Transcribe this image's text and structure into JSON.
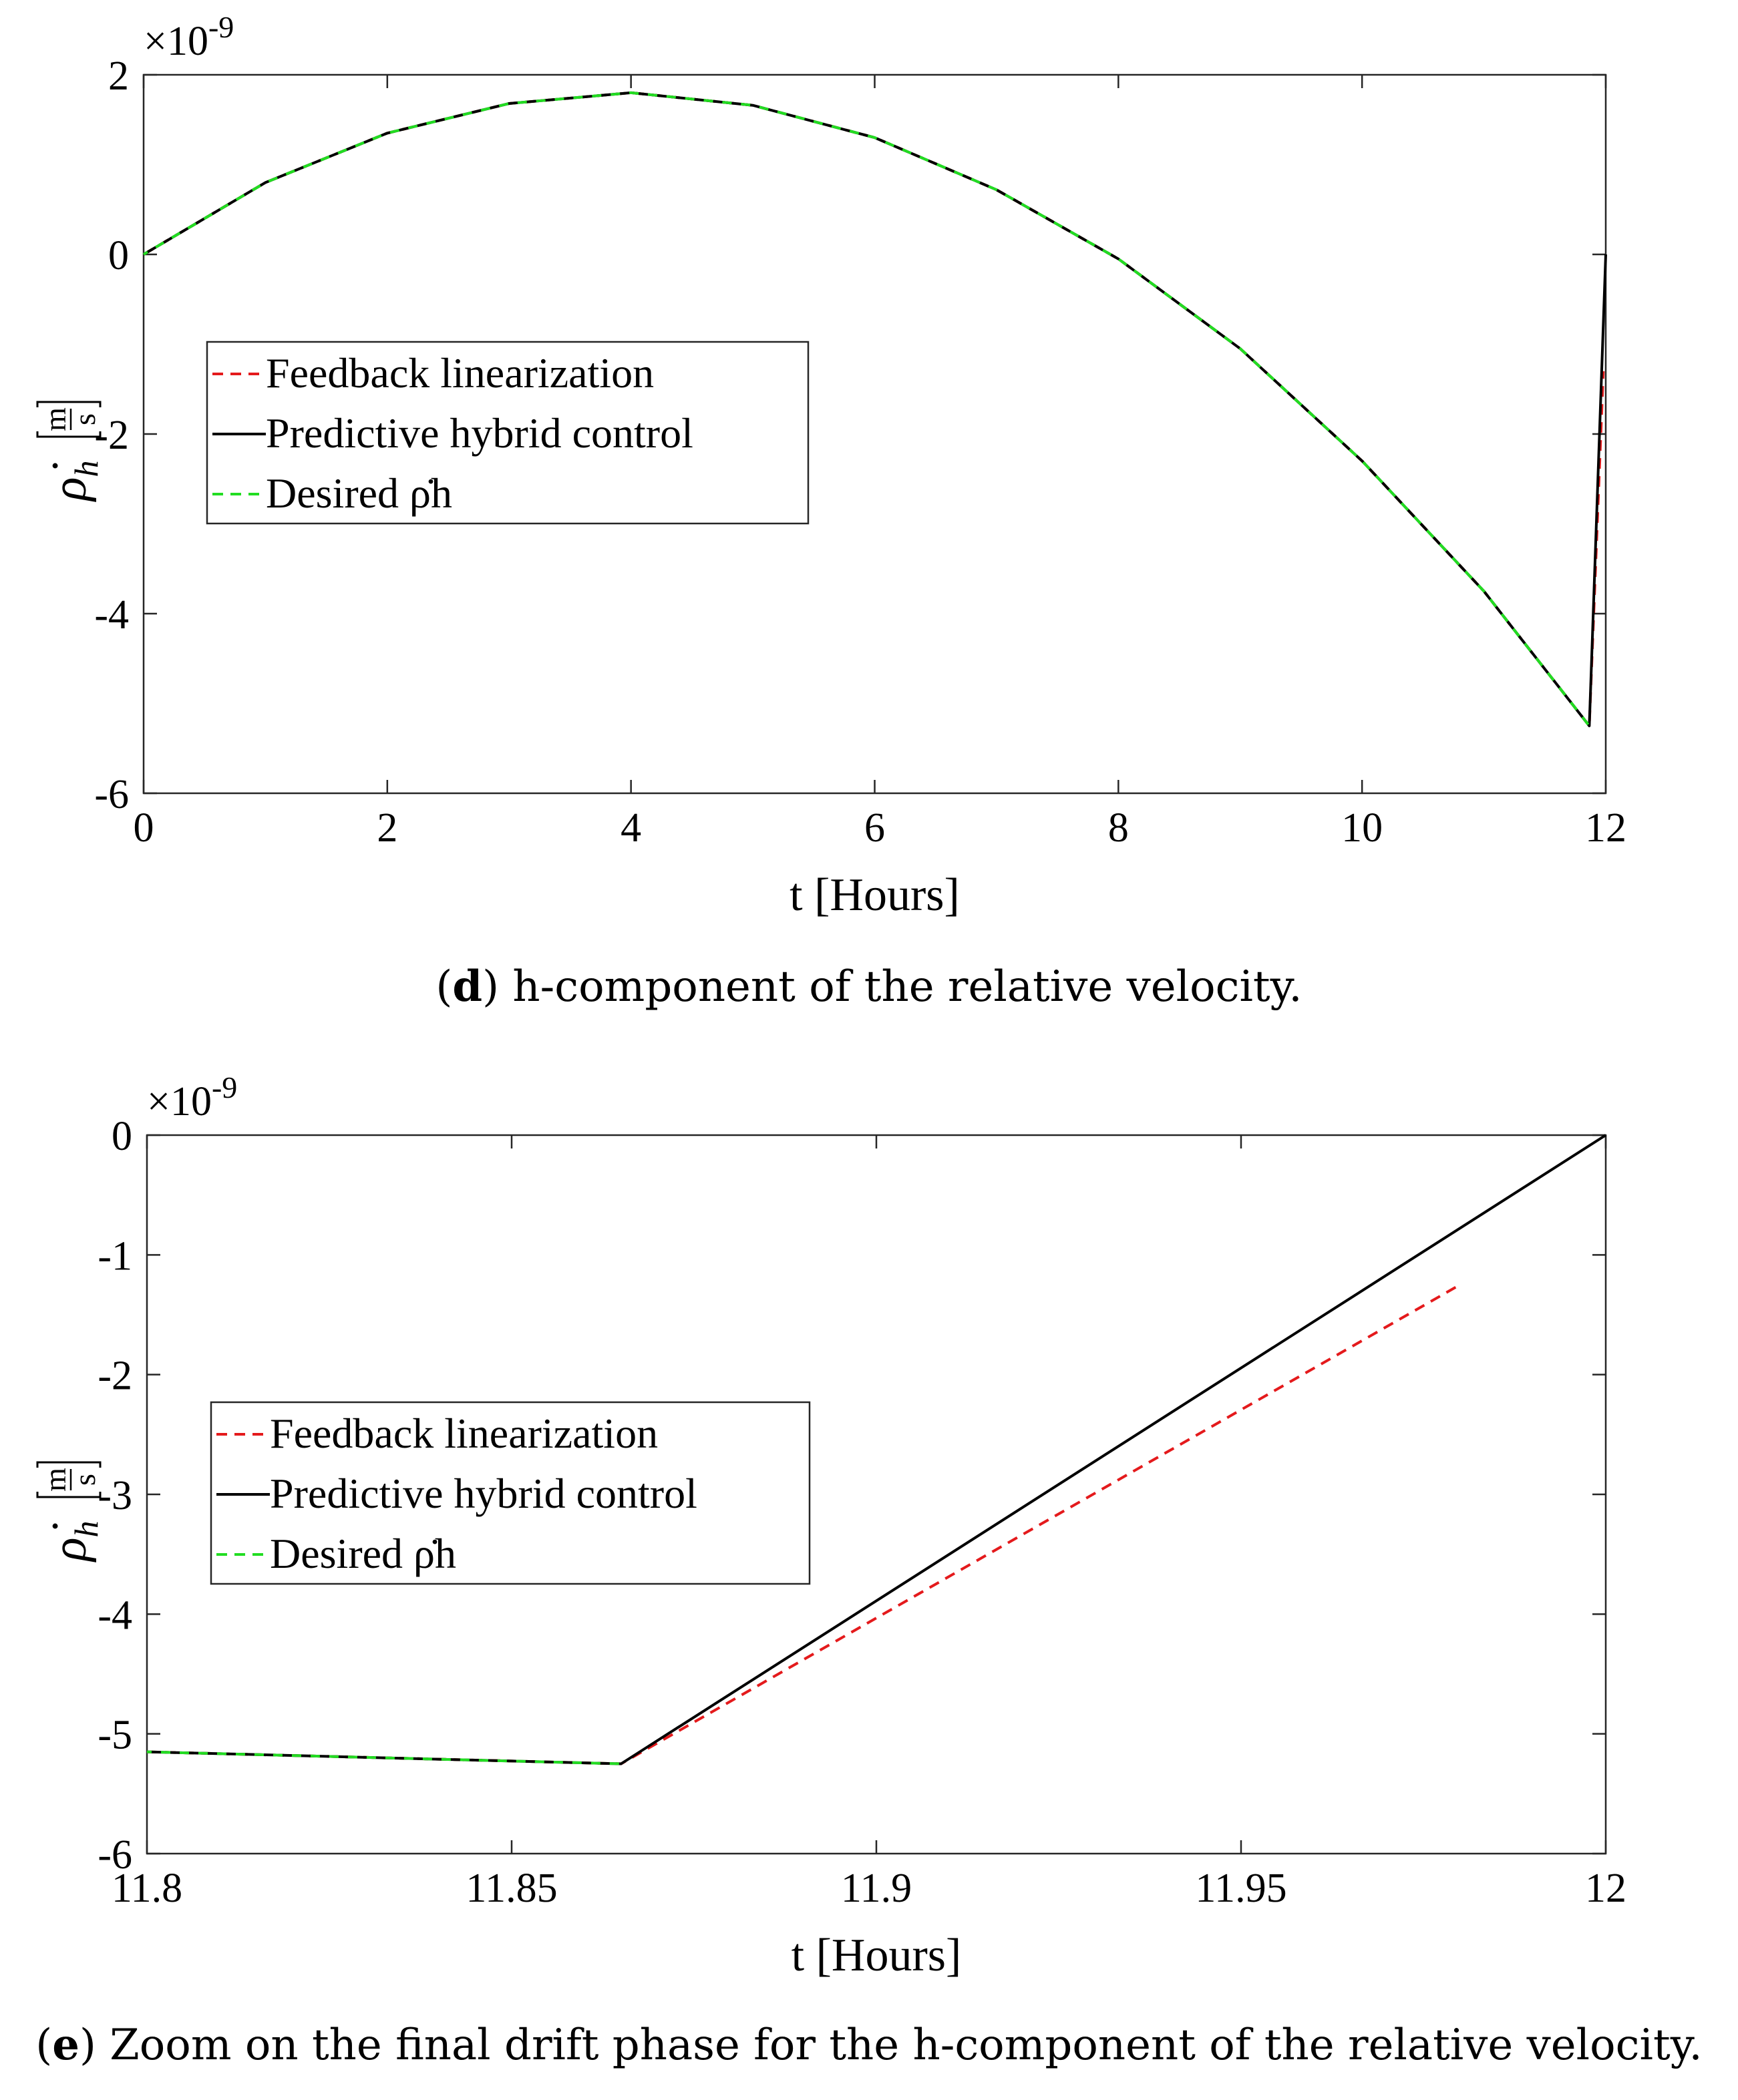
{
  "colors": {
    "red": "#e41a1c",
    "black": "#000000",
    "green": "#22dd22"
  },
  "chart_data": [
    {
      "type": "line",
      "panel": "d",
      "xlabel": "t [Hours]",
      "ylabel": "ρ̇h [m/s]",
      "ylabel_parts": {
        "symbol": "ρ̇",
        "sub": "h",
        "num": "m",
        "den": "s"
      },
      "y_exponent": "×10",
      "y_exponent_power": "-9",
      "xlim": [
        0,
        12
      ],
      "ylim": [
        -6,
        2
      ],
      "xticks": [
        0,
        2,
        4,
        6,
        8,
        10,
        12
      ],
      "xtick_labels": [
        "0",
        "2",
        "4",
        "6",
        "8",
        "10",
        "12"
      ],
      "yticks": [
        2,
        0,
        -2,
        -4,
        -6
      ],
      "ytick_labels": [
        "2",
        "0",
        "-2",
        "-4",
        "-6"
      ],
      "legend_location": "center-left",
      "legend": [
        "Feedback linearization",
        "Predictive hybrid control",
        "Desired ρ̇h"
      ],
      "series": [
        {
          "name": "Desired ρ̇h",
          "style": "dashed",
          "color": "green",
          "x": [
            0,
            1,
            2,
            3,
            4,
            5,
            6,
            7,
            8,
            9,
            10,
            11,
            11.865
          ],
          "y": [
            0,
            0.8,
            1.35,
            1.68,
            1.8,
            1.66,
            1.3,
            0.72,
            -0.05,
            -1.05,
            -2.3,
            -3.75,
            -5.25
          ]
        },
        {
          "name": "Feedback linearization",
          "style": "dashed",
          "color": "red",
          "x": [
            0,
            1,
            2,
            3,
            4,
            5,
            6,
            7,
            8,
            9,
            10,
            11,
            11.865,
            11.98
          ],
          "y": [
            0,
            0.8,
            1.35,
            1.68,
            1.8,
            1.66,
            1.3,
            0.72,
            -0.05,
            -1.05,
            -2.3,
            -3.75,
            -5.25,
            -1.3
          ]
        },
        {
          "name": "Predictive hybrid control",
          "style": "solid",
          "color": "black",
          "x": [
            0,
            1,
            2,
            3,
            4,
            5,
            6,
            7,
            8,
            9,
            10,
            11,
            11.865,
            12
          ],
          "y": [
            0,
            0.8,
            1.35,
            1.68,
            1.8,
            1.66,
            1.3,
            0.72,
            -0.05,
            -1.05,
            -2.3,
            -3.75,
            -5.25,
            0
          ]
        }
      ]
    },
    {
      "type": "line",
      "panel": "e",
      "xlabel": "t [Hours]",
      "ylabel": "ρ̇h [m/s]",
      "ylabel_parts": {
        "symbol": "ρ̇",
        "sub": "h",
        "num": "m",
        "den": "s"
      },
      "y_exponent": "×10",
      "y_exponent_power": "-9",
      "xlim": [
        11.8,
        12
      ],
      "ylim": [
        -6,
        0
      ],
      "xticks": [
        11.8,
        11.85,
        11.9,
        11.95,
        12
      ],
      "xtick_labels": [
        "11.8",
        "11.85",
        "11.9",
        "11.95",
        "12"
      ],
      "yticks": [
        0,
        -1,
        -2,
        -3,
        -4,
        -5,
        -6
      ],
      "ytick_labels": [
        "0",
        "-1",
        "-2",
        "-3",
        "-4",
        "-5",
        "-6"
      ],
      "legend_location": "center-left",
      "legend": [
        "Feedback linearization",
        "Predictive hybrid control",
        "Desired ρ̇h"
      ],
      "series": [
        {
          "name": "Desired ρ̇h",
          "style": "dashed",
          "color": "green",
          "x": [
            11.8,
            11.865
          ],
          "y": [
            -5.15,
            -5.25
          ]
        },
        {
          "name": "Feedback linearization",
          "style": "dashed",
          "color": "red",
          "x": [
            11.8,
            11.865,
            11.98
          ],
          "y": [
            -5.15,
            -5.25,
            -1.25
          ]
        },
        {
          "name": "Predictive hybrid control",
          "style": "solid",
          "color": "black",
          "x": [
            11.8,
            11.865,
            12
          ],
          "y": [
            -5.15,
            -5.25,
            0
          ]
        }
      ]
    }
  ],
  "captions": [
    {
      "label": "d",
      "text": " h-component of the relative velocity."
    },
    {
      "label": "e",
      "text": " Zoom on the final drift phase for the h-component of the relative velocity."
    }
  ]
}
